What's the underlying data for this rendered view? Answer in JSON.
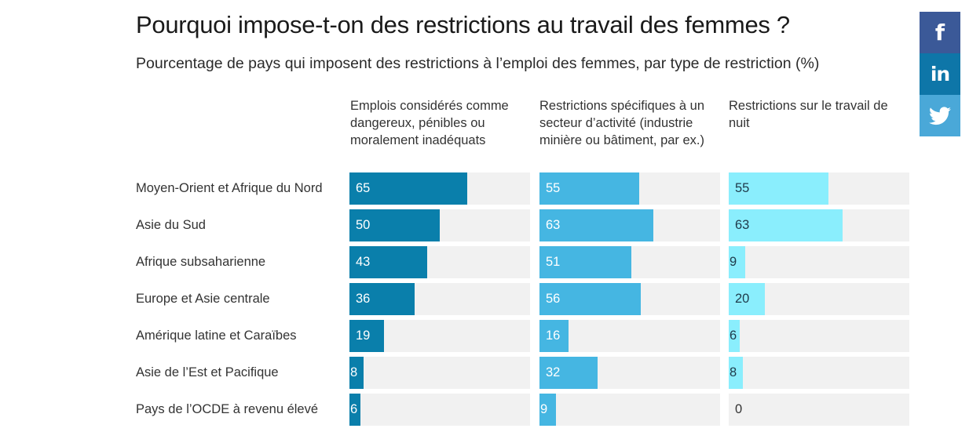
{
  "chart_data": {
    "type": "bar",
    "orientation": "horizontal",
    "title": "Pourquoi impose-t-on des restrictions au travail des femmes ?",
    "subtitle": "Pourcentage de pays qui imposent des restrictions à l’emploi des femmes, par type de restriction (%)",
    "xlim": [
      0,
      100
    ],
    "categories": [
      "Moyen-Orient et Afrique du Nord",
      "Asie du Sud",
      "Afrique subsaharienne",
      "Europe et Asie centrale",
      "Amérique latine et Caraïbes",
      "Asie de l’Est et Pacifique",
      "Pays de l’OCDE à revenu élevé"
    ],
    "series": [
      {
        "name": "Emplois considérés comme dangereux, pénibles ou moralement inadéquats",
        "color": "#0a7fab",
        "label_color": "#ffffff",
        "values": [
          65,
          50,
          43,
          36,
          19,
          8,
          6
        ]
      },
      {
        "name": "Restrictions spécifiques à un secteur d’activité (industrie minière ou bâtiment, par ex.)",
        "color": "#45b6e2",
        "label_color": "#ffffff",
        "values": [
          55,
          63,
          51,
          56,
          16,
          32,
          9
        ]
      },
      {
        "name": "Restrictions sur le travail de nuit",
        "color": "#8aeefd",
        "label_color": "#1f3a4a",
        "values": [
          55,
          63,
          9,
          20,
          6,
          8,
          0
        ]
      }
    ],
    "track_color": "#f1f1f1"
  },
  "social": {
    "facebook": {
      "glyph": "f",
      "color": "#3b5998"
    },
    "linkedin": {
      "glyph": "in",
      "color": "#0e76a8"
    },
    "twitter": {
      "color": "#4aa8d8"
    }
  }
}
